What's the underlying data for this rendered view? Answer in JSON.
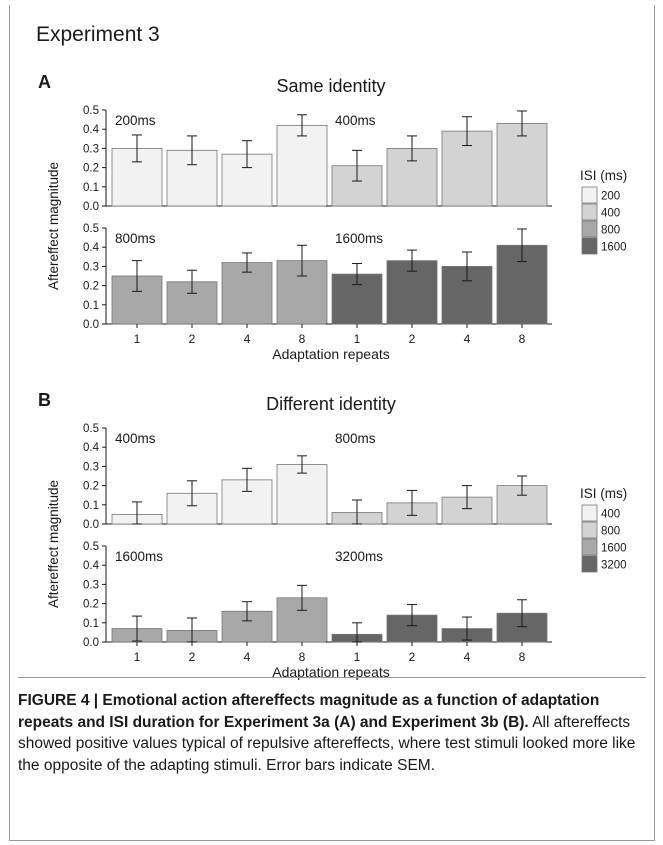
{
  "figure": {
    "experiment_title": "Experiment 3",
    "caption_bold": "FIGURE 4 | Emotional action aftereffects magnitude as a function of adaptation repeats and ISI duration for Experiment 3a (A) and Experiment 3b (B).",
    "caption_text": "All aftereffects showed positive values typical of repulsive aftereffects, where test stimuli looked more like the opposite of the adapting stimuli. Error bars indicate SEM."
  },
  "colors": {
    "isi_1": "#f2f2f2",
    "isi_2": "#d3d3d3",
    "isi_3": "#a8a8a8",
    "isi_4": "#666666",
    "border": "#777777"
  },
  "chart_data": [
    {
      "type": "bar",
      "panel_letter": "A",
      "title": "Same identity",
      "ylabel": "Aftereffect magnitude",
      "xlabel": "Adaptation repeats",
      "categories": [
        "1",
        "2",
        "4",
        "8"
      ],
      "ylim": [
        0,
        0.5
      ],
      "yticks": [
        "0.0",
        "0.1",
        "0.2",
        "0.3",
        "0.4",
        "0.5"
      ],
      "legend_title": "ISI (ms)",
      "legend_position": "right",
      "series": [
        {
          "name": "200",
          "label": "200ms",
          "values": [
            0.3,
            0.29,
            0.27,
            0.42
          ],
          "errors": [
            0.07,
            0.075,
            0.07,
            0.055
          ]
        },
        {
          "name": "400",
          "label": "400ms",
          "values": [
            0.21,
            0.3,
            0.39,
            0.43
          ],
          "errors": [
            0.08,
            0.065,
            0.075,
            0.065
          ]
        },
        {
          "name": "800",
          "label": "800ms",
          "values": [
            0.25,
            0.22,
            0.32,
            0.33
          ],
          "errors": [
            0.08,
            0.06,
            0.05,
            0.08
          ]
        },
        {
          "name": "1600",
          "label": "1600ms",
          "values": [
            0.26,
            0.33,
            0.3,
            0.41
          ],
          "errors": [
            0.055,
            0.055,
            0.075,
            0.085
          ]
        }
      ]
    },
    {
      "type": "bar",
      "panel_letter": "B",
      "title": "Different identity",
      "ylabel": "Aftereffect magnitude",
      "xlabel": "Adaptation repeats",
      "categories": [
        "1",
        "2",
        "4",
        "8"
      ],
      "ylim": [
        0,
        0.5
      ],
      "yticks": [
        "0.0",
        "0.1",
        "0.2",
        "0.3",
        "0.4",
        "0.5"
      ],
      "legend_title": "ISI (ms)",
      "legend_position": "right",
      "series": [
        {
          "name": "400",
          "label": "400ms",
          "values": [
            0.05,
            0.16,
            0.23,
            0.31
          ],
          "errors": [
            0.065,
            0.065,
            0.06,
            0.045
          ]
        },
        {
          "name": "800",
          "label": "800ms",
          "values": [
            0.06,
            0.11,
            0.14,
            0.2
          ],
          "errors": [
            0.065,
            0.065,
            0.06,
            0.05
          ]
        },
        {
          "name": "1600",
          "label": "1600ms",
          "values": [
            0.07,
            0.06,
            0.16,
            0.23
          ],
          "errors": [
            0.065,
            0.065,
            0.05,
            0.065
          ]
        },
        {
          "name": "3200",
          "label": "3200ms",
          "values": [
            0.04,
            0.14,
            0.07,
            0.15
          ],
          "errors": [
            0.06,
            0.055,
            0.06,
            0.07
          ]
        }
      ]
    }
  ]
}
